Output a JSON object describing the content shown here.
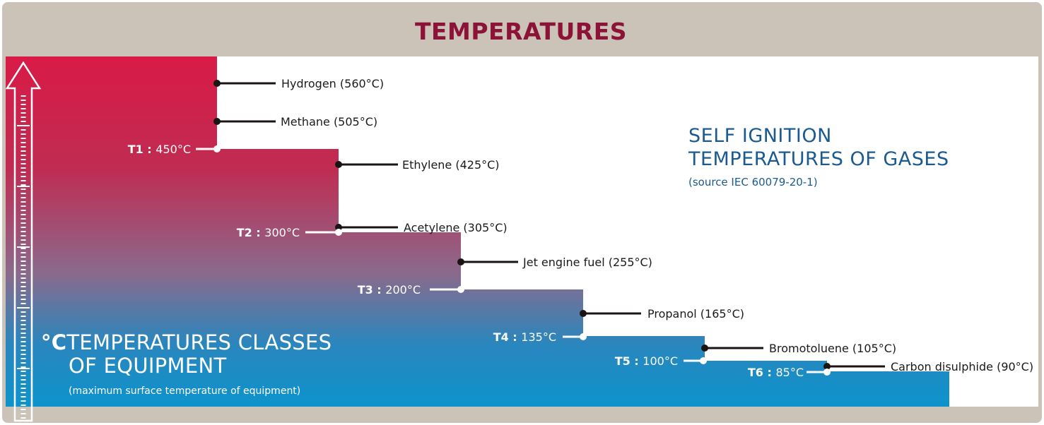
{
  "header": {
    "title": "TEMPERATURES"
  },
  "info": {
    "line1": "SELF IGNITION",
    "line2": "TEMPERATURES OF GASES",
    "source": "(source IEC 60079-20-1)"
  },
  "classes": {
    "unit": "°C",
    "line1": "TEMPERATURES CLASSES",
    "line2": "OF EQUIPMENT",
    "note": "(maximum surface temperature of equipment)"
  },
  "temperature_classes": [
    {
      "code": "T1 :",
      "max_temp": "450°C",
      "value": 450
    },
    {
      "code": "T2 :",
      "max_temp": "300°C",
      "value": 300
    },
    {
      "code": "T3 :",
      "max_temp": "200°C",
      "value": 200
    },
    {
      "code": "T4 :",
      "max_temp": "135°C",
      "value": 135
    },
    {
      "code": "T5 :",
      "max_temp": "100°C",
      "value": 100
    },
    {
      "code": "T6 :",
      "max_temp": "85°C",
      "value": 85
    }
  ],
  "gases": [
    {
      "label": "Hydrogen (560°C)",
      "value": 560
    },
    {
      "label": "Methane (505°C)",
      "value": 505
    },
    {
      "label": "Ethylene (425°C)",
      "value": 425
    },
    {
      "label": "Acetylene (305°C)",
      "value": 305
    },
    {
      "label": "Jet engine fuel (255°C)",
      "value": 255
    },
    {
      "label": "Propanol (165°C)",
      "value": 165
    },
    {
      "label": "Bromotoluene (105°C)",
      "value": 105
    },
    {
      "label": "Carbon disulphide (90°C)",
      "value": 90
    }
  ],
  "colors": {
    "frame": "#cbc3b8",
    "title": "#8c1238",
    "gradient_top": "#d91a47",
    "gradient_mid": "#8a6a8c",
    "gradient_bottom": "#0d93cc",
    "info_text": "#1b5a91",
    "dot": "#1a1414"
  }
}
